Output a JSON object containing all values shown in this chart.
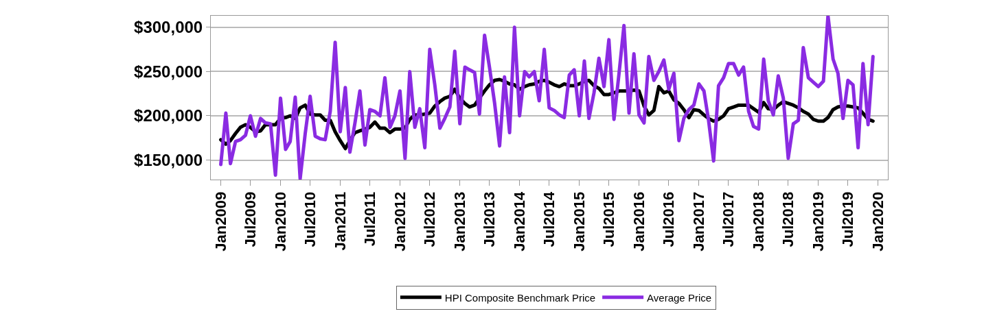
{
  "chart_data": {
    "type": "line",
    "x": [
      "2009-01",
      "2009-02",
      "2009-03",
      "2009-04",
      "2009-05",
      "2009-06",
      "2009-07",
      "2009-08",
      "2009-09",
      "2009-10",
      "2009-11",
      "2009-12",
      "2010-01",
      "2010-02",
      "2010-03",
      "2010-04",
      "2010-05",
      "2010-06",
      "2010-07",
      "2010-08",
      "2010-09",
      "2010-10",
      "2010-11",
      "2010-12",
      "2011-01",
      "2011-02",
      "2011-03",
      "2011-04",
      "2011-05",
      "2011-06",
      "2011-07",
      "2011-08",
      "2011-09",
      "2011-10",
      "2011-11",
      "2011-12",
      "2012-01",
      "2012-02",
      "2012-03",
      "2012-04",
      "2012-05",
      "2012-06",
      "2012-07",
      "2012-08",
      "2012-09",
      "2012-10",
      "2012-11",
      "2012-12",
      "2013-01",
      "2013-02",
      "2013-03",
      "2013-04",
      "2013-05",
      "2013-06",
      "2013-07",
      "2013-08",
      "2013-09",
      "2013-10",
      "2013-11",
      "2013-12",
      "2014-01",
      "2014-02",
      "2014-03",
      "2014-04",
      "2014-05",
      "2014-06",
      "2014-07",
      "2014-08",
      "2014-09",
      "2014-10",
      "2014-11",
      "2014-12",
      "2015-01",
      "2015-02",
      "2015-03",
      "2015-04",
      "2015-05",
      "2015-06",
      "2015-07",
      "2015-08",
      "2015-09",
      "2015-10",
      "2015-11",
      "2015-12",
      "2016-01",
      "2016-02",
      "2016-03",
      "2016-04",
      "2016-05",
      "2016-06",
      "2016-07",
      "2016-08",
      "2016-09",
      "2016-10",
      "2016-11",
      "2016-12",
      "2017-01",
      "2017-02",
      "2017-03",
      "2017-04",
      "2017-05",
      "2017-06",
      "2017-07",
      "2017-08",
      "2017-09",
      "2017-10",
      "2017-11",
      "2017-12",
      "2018-01",
      "2018-02",
      "2018-03",
      "2018-04",
      "2018-05",
      "2018-06",
      "2018-07",
      "2018-08",
      "2018-09",
      "2018-10",
      "2018-11",
      "2018-12",
      "2019-01",
      "2019-02",
      "2019-03",
      "2019-04",
      "2019-05",
      "2019-06",
      "2019-07",
      "2019-08",
      "2019-09",
      "2019-10",
      "2019-11",
      "2019-12"
    ],
    "series": [
      {
        "name": "HPI Composite Benchmark Price",
        "color": "#000000",
        "values": [
          173000,
          168000,
          172000,
          180000,
          187000,
          190000,
          187000,
          182000,
          183000,
          190000,
          190000,
          190000,
          197000,
          198000,
          200000,
          197000,
          209000,
          212000,
          202000,
          201000,
          201000,
          195000,
          195000,
          182000,
          172000,
          163000,
          172000,
          181000,
          183000,
          185000,
          187000,
          193000,
          186000,
          186000,
          181000,
          185000,
          185000,
          186000,
          196000,
          201000,
          201000,
          202000,
          203000,
          211000,
          216000,
          220000,
          222000,
          230000,
          220000,
          214000,
          210000,
          212000,
          220000,
          228000,
          235000,
          240000,
          241000,
          239000,
          236000,
          235000,
          230000,
          233000,
          235000,
          236000,
          239000,
          240000,
          238000,
          235000,
          233000,
          236000,
          234000,
          234000,
          236000,
          239000,
          240000,
          234000,
          231000,
          224000,
          224000,
          226000,
          228000,
          228000,
          228000,
          229000,
          228000,
          211000,
          201000,
          206000,
          233000,
          226000,
          228000,
          218000,
          214000,
          207000,
          198000,
          207000,
          206000,
          201000,
          197000,
          194000,
          196000,
          200000,
          208000,
          210000,
          212000,
          212000,
          212000,
          208000,
          204000,
          215000,
          208000,
          207000,
          212000,
          216000,
          214000,
          212000,
          209000,
          205000,
          202000,
          196000,
          194000,
          194000,
          198000,
          207000,
          210000,
          211000,
          211000,
          210000,
          209000,
          203000,
          196000,
          194000
        ]
      },
      {
        "name": "Average Price",
        "color": "#8a2be2",
        "values": [
          145000,
          203000,
          146000,
          171000,
          173000,
          178000,
          200000,
          177000,
          197000,
          192000,
          191000,
          133000,
          220000,
          162000,
          171000,
          221000,
          129000,
          180000,
          222000,
          177000,
          174000,
          173000,
          205000,
          283000,
          182000,
          232000,
          159000,
          192000,
          228000,
          167000,
          207000,
          205000,
          200000,
          243000,
          187000,
          200000,
          228000,
          152000,
          250000,
          187000,
          208000,
          164000,
          275000,
          235000,
          186000,
          197000,
          210000,
          273000,
          191000,
          255000,
          252000,
          249000,
          202000,
          291000,
          255000,
          215000,
          166000,
          244000,
          181000,
          300000,
          200000,
          250000,
          244000,
          250000,
          217000,
          275000,
          209000,
          206000,
          201000,
          198000,
          246000,
          252000,
          200000,
          262000,
          197000,
          226000,
          265000,
          233000,
          286000,
          196000,
          248000,
          302000,
          203000,
          270000,
          201000,
          192000,
          267000,
          240000,
          250000,
          263000,
          230000,
          248000,
          172000,
          197000,
          207000,
          212000,
          236000,
          228000,
          195000,
          149000,
          234000,
          243000,
          259000,
          259000,
          246000,
          255000,
          205000,
          188000,
          185000,
          264000,
          217000,
          201000,
          245000,
          220000,
          152000,
          191000,
          195000,
          277000,
          243000,
          238000,
          233000,
          239000,
          313000,
          264000,
          248000,
          197000,
          240000,
          235000,
          164000,
          259000,
          190000,
          267000
        ]
      }
    ],
    "xlim": [
      "2008-11",
      "2020-03"
    ],
    "xticks": [
      {
        "value": "2009-01",
        "label": "Jan2009"
      },
      {
        "value": "2009-07",
        "label": "Jul2009"
      },
      {
        "value": "2010-01",
        "label": "Jan2010"
      },
      {
        "value": "2010-07",
        "label": "Jul2010"
      },
      {
        "value": "2011-01",
        "label": "Jan2011"
      },
      {
        "value": "2011-07",
        "label": "Jul2011"
      },
      {
        "value": "2012-01",
        "label": "Jan2012"
      },
      {
        "value": "2012-07",
        "label": "Jul2012"
      },
      {
        "value": "2013-01",
        "label": "Jan2013"
      },
      {
        "value": "2013-07",
        "label": "Jul2013"
      },
      {
        "value": "2014-01",
        "label": "Jan2014"
      },
      {
        "value": "2014-07",
        "label": "Jul2014"
      },
      {
        "value": "2015-01",
        "label": "Jan2015"
      },
      {
        "value": "2015-07",
        "label": "Jul2015"
      },
      {
        "value": "2016-01",
        "label": "Jan2016"
      },
      {
        "value": "2016-07",
        "label": "Jul2016"
      },
      {
        "value": "2017-01",
        "label": "Jan2017"
      },
      {
        "value": "2017-07",
        "label": "Jul2017"
      },
      {
        "value": "2018-01",
        "label": "Jan2018"
      },
      {
        "value": "2018-07",
        "label": "Jul2018"
      },
      {
        "value": "2019-01",
        "label": "Jan2019"
      },
      {
        "value": "2019-07",
        "label": "Jul2019"
      },
      {
        "value": "2020-01",
        "label": "Jan2020"
      }
    ],
    "ylim": [
      128000,
      313000
    ],
    "yticks": [
      {
        "value": 150000,
        "label": "$150,000"
      },
      {
        "value": 200000,
        "label": "$200,000"
      },
      {
        "value": 250000,
        "label": "$250,000"
      },
      {
        "value": 300000,
        "label": "$300,000"
      }
    ],
    "grid": "y",
    "legend": "bottom",
    "marker": "none",
    "line_style": "solid"
  }
}
